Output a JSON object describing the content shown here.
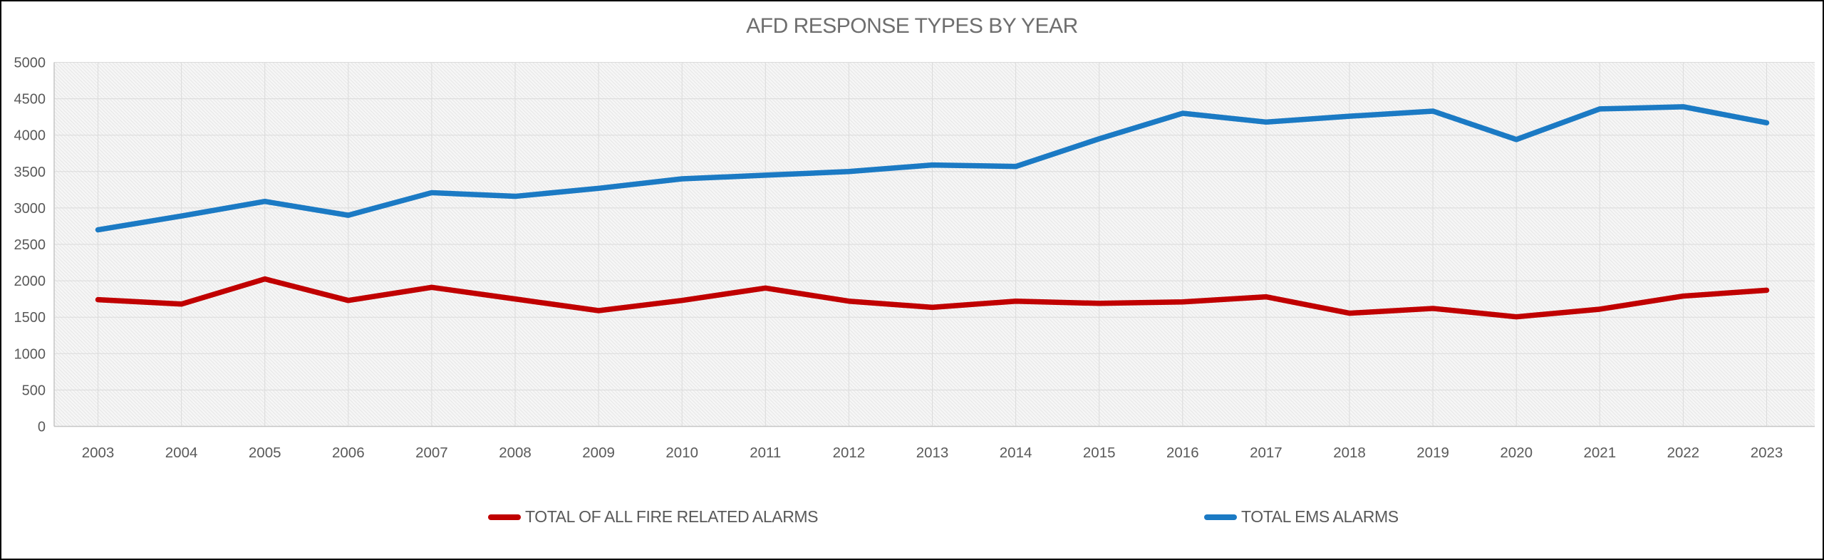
{
  "chart": {
    "title": "AFD RESPONSE TYPES BY YEAR",
    "colors": {
      "fire": "#C00000",
      "ems": "#1B7AC4",
      "gridline": "#DBDBDB",
      "axis_line": "#C6C6C6",
      "plot_bg": "#F6F6F6",
      "plot_hatch": "#E7E7E7",
      "tick_text": "#595959",
      "title_text": "#6E6E6E"
    }
  },
  "chart_data": {
    "type": "line",
    "title": "AFD RESPONSE TYPES BY YEAR",
    "categories": [
      2003,
      2004,
      2005,
      2006,
      2007,
      2008,
      2009,
      2010,
      2011,
      2012,
      2013,
      2014,
      2015,
      2016,
      2017,
      2018,
      2019,
      2020,
      2021,
      2022,
      2023
    ],
    "series": [
      {
        "name": "TOTAL OF ALL FIRE RELATED ALARMS",
        "color": "#C00000",
        "values": [
          1740,
          1680,
          2025,
          1730,
          1910,
          1750,
          1590,
          1730,
          1900,
          1720,
          1635,
          1720,
          1690,
          1710,
          1780,
          1555,
          1620,
          1505,
          1610,
          1790,
          1870
        ]
      },
      {
        "name": "TOTAL EMS ALARMS",
        "color": "#1B7AC4",
        "values": [
          2700,
          2890,
          3090,
          2900,
          3210,
          3160,
          3270,
          3400,
          3450,
          3500,
          3590,
          3570,
          3950,
          4300,
          4180,
          4260,
          4330,
          3940,
          4360,
          4390,
          4170
        ]
      }
    ],
    "xlabel": "",
    "ylabel": "",
    "ylim": [
      0,
      5000
    ],
    "y_ticks": [
      0,
      500,
      1000,
      1500,
      2000,
      2500,
      3000,
      3500,
      4000,
      4500,
      5000
    ],
    "grid": "horizontal and vertical, light gray, hatched plot background",
    "legend_position": "bottom"
  },
  "legend": {
    "fire_label": "TOTAL OF ALL FIRE RELATED ALARMS",
    "ems_label": "TOTAL EMS ALARMS"
  }
}
